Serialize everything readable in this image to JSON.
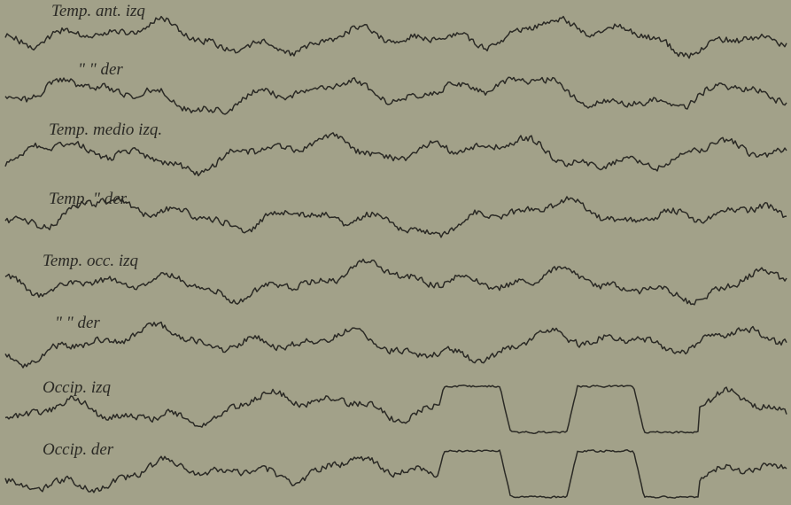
{
  "traces": [
    {
      "label": "Temp. ant. izq"
    },
    {
      "label": "\" \" der"
    },
    {
      "label": "Temp. medio izq."
    },
    {
      "label": "Temp. \" der."
    },
    {
      "label": "Temp. occ. izq"
    },
    {
      "label": "\" \" der"
    },
    {
      "label": "Occip. izq"
    },
    {
      "label": "Occip. der"
    }
  ]
}
